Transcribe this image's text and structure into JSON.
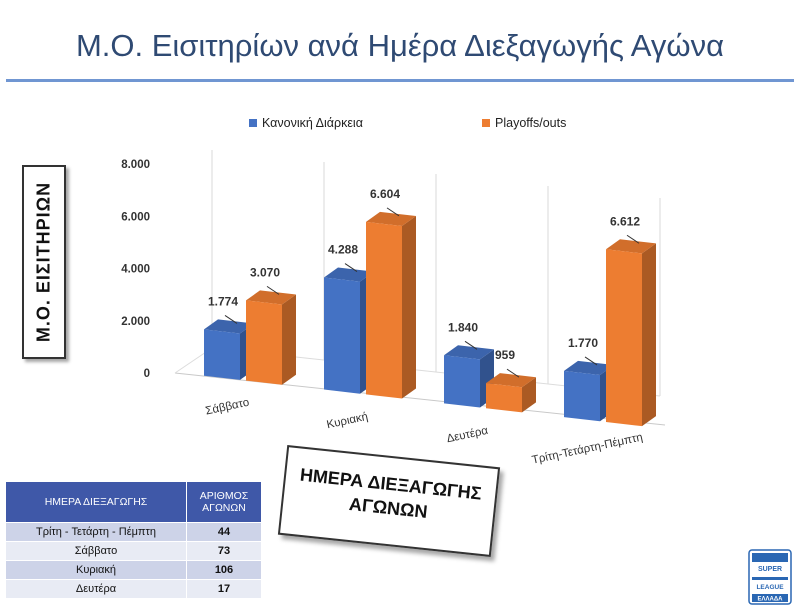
{
  "title": "Μ.Ο. Εισιτηρίων ανά Ημέρα Διεξαγωγής Αγώνα",
  "chart_data": {
    "type": "bar",
    "categories": [
      "Σάββατο",
      "Κυριακή",
      "Δευτέρα",
      "Τρίτη-Τετάρτη-Πέμπτη"
    ],
    "series": [
      {
        "name": "Κανονική Διάρκεια",
        "color": "#4472c4",
        "values": [
          1774,
          4288,
          1840,
          1770
        ],
        "labels": [
          "1.774",
          "4.288",
          "1.840",
          "1.770"
        ]
      },
      {
        "name": "Playoffs/outs",
        "color": "#ed7d31",
        "values": [
          3070,
          6604,
          959,
          6612
        ],
        "labels": [
          "3.070",
          "6.604",
          "959",
          "6.612"
        ]
      }
    ],
    "y_ticks": [
      {
        "value": 0,
        "label": "0"
      },
      {
        "value": 2000,
        "label": "2.000"
      },
      {
        "value": 4000,
        "label": "4.000"
      },
      {
        "value": 6000,
        "label": "6.000"
      },
      {
        "value": 8000,
        "label": "8.000"
      }
    ],
    "ylim": [
      0,
      8000
    ],
    "ylabel": "Μ.Ο. ΕΙΣΙΤΗΡΙΩΝ",
    "xlabel": "ΗΜΕΡΑ ΔΙΕΞΑΓΩΓΗΣ ΑΓΩΝΩΝ",
    "legend_position": "top",
    "style": "3d clustered columns"
  },
  "table": {
    "headers": [
      "ΗΜΕΡΑ ΔΙΕΞΑΓΩΓΗΣ",
      "ΑΡΙΘΜΟΣ ΑΓΩΝΩΝ"
    ],
    "rows": [
      {
        "day": "Τρίτη - Τετάρτη  - Πέμπτη",
        "count": "44"
      },
      {
        "day": "Σάββατο",
        "count": "73"
      },
      {
        "day": "Κυριακή",
        "count": "106"
      },
      {
        "day": "Δευτέρα",
        "count": "17"
      }
    ]
  },
  "logo": {
    "lines": [
      "SUPER",
      "LEAGUE",
      "ΕΛΛΑΔΑ"
    ]
  }
}
